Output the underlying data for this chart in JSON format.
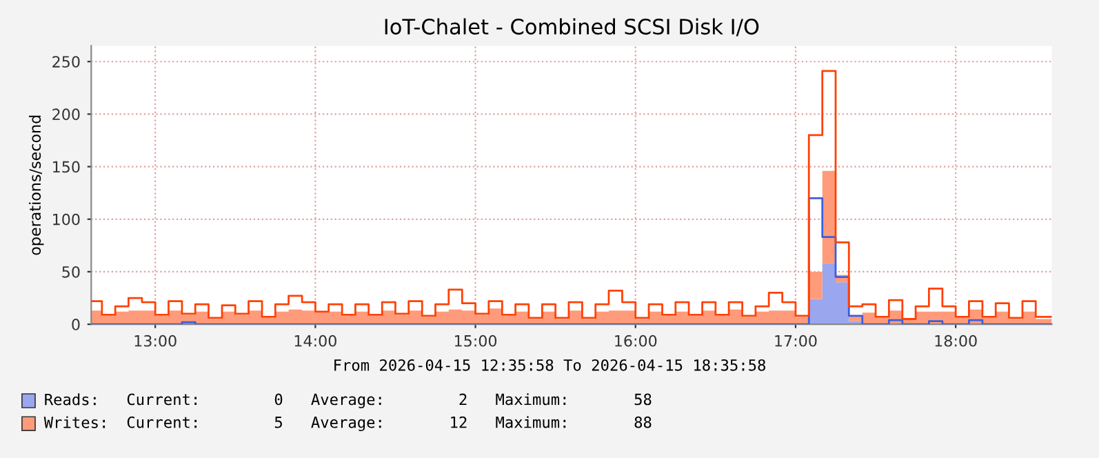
{
  "chart_data": {
    "type": "area",
    "title": "IoT-Chalet - Combined SCSI Disk I/O",
    "ylabel": "operations/second",
    "stacked": true,
    "grid": true,
    "legend": "bottom",
    "line_style": "solid",
    "marker": "none",
    "x": [
      12.6,
      12.667,
      12.75,
      12.833,
      12.917,
      13,
      13.083,
      13.167,
      13.25,
      13.333,
      13.417,
      13.5,
      13.583,
      13.667,
      13.75,
      13.833,
      13.917,
      14,
      14.083,
      14.167,
      14.25,
      14.333,
      14.417,
      14.5,
      14.583,
      14.667,
      14.75,
      14.833,
      14.917,
      15,
      15.083,
      15.167,
      15.25,
      15.333,
      15.417,
      15.5,
      15.583,
      15.667,
      15.75,
      15.833,
      15.917,
      16,
      16.083,
      16.167,
      16.25,
      16.333,
      16.417,
      16.5,
      16.583,
      16.667,
      16.75,
      16.833,
      16.917,
      17,
      17.083,
      17.167,
      17.25,
      17.333,
      17.417,
      17.5,
      17.583,
      17.667,
      17.75,
      17.833,
      17.917,
      18,
      18.083,
      18.167,
      18.25,
      18.333,
      18.417,
      18.5,
      18.583
    ],
    "xlim": [
      12.6,
      18.6
    ],
    "xticks": [
      {
        "value": 13,
        "label": "13:00"
      },
      {
        "value": 14,
        "label": "14:00"
      },
      {
        "value": 15,
        "label": "15:00"
      },
      {
        "value": 16,
        "label": "16:00"
      },
      {
        "value": 17,
        "label": "17:00"
      },
      {
        "value": 18,
        "label": "18:00"
      }
    ],
    "ylim": [
      0,
      265
    ],
    "yticks": [
      0,
      50,
      100,
      150,
      200,
      250
    ],
    "series": [
      {
        "name": "Reads:",
        "color": "#9aa6ee",
        "values": [
          0,
          0,
          0,
          0,
          0,
          0,
          0,
          0,
          0,
          0,
          0,
          0,
          0,
          0,
          0,
          0,
          0,
          0,
          0,
          0,
          0,
          0,
          0,
          0,
          0,
          0,
          0,
          0,
          0,
          0,
          0,
          0,
          0,
          0,
          0,
          0,
          0,
          0,
          0,
          0,
          0,
          0,
          0,
          0,
          0,
          0,
          0,
          0,
          0,
          0,
          0,
          0,
          0,
          0,
          24,
          58,
          40,
          3,
          0,
          0,
          0,
          0,
          0,
          0,
          0,
          0,
          0,
          0,
          0,
          0,
          0,
          0,
          0
        ]
      },
      {
        "name": "Writes:",
        "color": "#ff9b7a",
        "values": [
          13,
          8,
          12,
          13,
          13,
          8,
          13,
          9,
          12,
          5,
          12,
          9,
          13,
          6,
          12,
          14,
          13,
          11,
          12,
          8,
          12,
          8,
          13,
          9,
          13,
          7,
          12,
          14,
          13,
          9,
          15,
          8,
          12,
          5,
          12,
          5,
          13,
          5,
          12,
          13,
          13,
          5,
          12,
          8,
          12,
          8,
          13,
          8,
          14,
          7,
          12,
          13,
          13,
          7,
          26,
          88,
          7,
          5,
          11,
          6,
          13,
          4,
          12,
          12,
          12,
          6,
          14,
          6,
          12,
          5,
          12,
          5,
          5
        ]
      },
      {
        "type": "step",
        "color": "#3a5ee0",
        "values": [
          0,
          0,
          0,
          0,
          0,
          0,
          0,
          2,
          0,
          0,
          0,
          0,
          0,
          0,
          0,
          0,
          0,
          0,
          0,
          0,
          0,
          0,
          0,
          0,
          0,
          0,
          0,
          0,
          0,
          0,
          0,
          0,
          0,
          0,
          0,
          0,
          0,
          0,
          0,
          0,
          0,
          0,
          0,
          0,
          0,
          0,
          0,
          0,
          0,
          0,
          0,
          0,
          0,
          0,
          120,
          83,
          45,
          8,
          0,
          0,
          4,
          0,
          0,
          3,
          0,
          0,
          4,
          0,
          0,
          0,
          0,
          0,
          0
        ]
      },
      {
        "type": "step",
        "color": "#ff4105",
        "values": [
          22,
          9,
          17,
          25,
          21,
          9,
          22,
          10,
          19,
          6,
          18,
          10,
          22,
          7,
          19,
          27,
          21,
          12,
          19,
          9,
          19,
          9,
          21,
          10,
          22,
          8,
          19,
          33,
          20,
          10,
          22,
          9,
          19,
          6,
          19,
          6,
          21,
          6,
          19,
          32,
          21,
          6,
          19,
          9,
          21,
          9,
          21,
          9,
          21,
          8,
          17,
          30,
          21,
          8,
          180,
          241,
          78,
          17,
          19,
          7,
          23,
          5,
          17,
          34,
          17,
          7,
          22,
          7,
          20,
          6,
          22,
          7,
          7
        ]
      }
    ],
    "annotations": [
      "From 2026-04-15 12:35:58 To 2026-04-15 18:35:58",
      "Current:        0   Average:        2   Maximum:       58",
      "Current:        5   Average:       12   Maximum:       88"
    ]
  }
}
